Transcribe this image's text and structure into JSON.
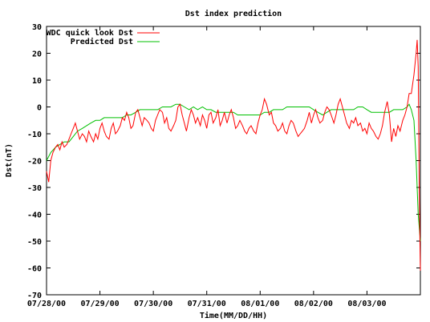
{
  "chart_data": {
    "type": "line",
    "title": "Dst index prediction",
    "xlabel": "Time(MM/DD/HH)",
    "ylabel": "Dst(nT)",
    "x_tick_labels": [
      "07/28/00",
      "07/29/00",
      "07/30/00",
      "07/31/00",
      "08/01/00",
      "08/02/00",
      "08/03/00"
    ],
    "x_range_days": [
      0,
      7.0
    ],
    "ylim": [
      -70,
      30
    ],
    "y_ticks": [
      30,
      20,
      10,
      0,
      -10,
      -20,
      -30,
      -40,
      -50,
      -60,
      -70
    ],
    "grid": false,
    "legend_position": "top-left",
    "series": [
      {
        "name": "WDC quick look Dst",
        "color": "#ff0000",
        "x": [
          0.0,
          0.04,
          0.08,
          0.12,
          0.17,
          0.21,
          0.25,
          0.29,
          0.33,
          0.38,
          0.42,
          0.46,
          0.5,
          0.54,
          0.58,
          0.62,
          0.67,
          0.71,
          0.75,
          0.79,
          0.83,
          0.88,
          0.92,
          0.96,
          1.0,
          1.04,
          1.08,
          1.12,
          1.17,
          1.21,
          1.25,
          1.29,
          1.33,
          1.38,
          1.42,
          1.46,
          1.5,
          1.54,
          1.58,
          1.62,
          1.67,
          1.71,
          1.75,
          1.79,
          1.83,
          1.88,
          1.92,
          1.96,
          2.0,
          2.04,
          2.08,
          2.12,
          2.17,
          2.21,
          2.25,
          2.29,
          2.33,
          2.38,
          2.42,
          2.46,
          2.5,
          2.54,
          2.58,
          2.62,
          2.67,
          2.71,
          2.75,
          2.79,
          2.83,
          2.88,
          2.92,
          2.96,
          3.0,
          3.04,
          3.08,
          3.12,
          3.17,
          3.21,
          3.25,
          3.29,
          3.33,
          3.38,
          3.42,
          3.46,
          3.5,
          3.54,
          3.58,
          3.62,
          3.67,
          3.71,
          3.75,
          3.79,
          3.83,
          3.88,
          3.92,
          3.96,
          4.0,
          4.04,
          4.08,
          4.12,
          4.17,
          4.21,
          4.25,
          4.29,
          4.33,
          4.38,
          4.42,
          4.46,
          4.5,
          4.54,
          4.58,
          4.62,
          4.67,
          4.71,
          4.75,
          4.79,
          4.83,
          4.88,
          4.92,
          4.96,
          5.0,
          5.04,
          5.08,
          5.12,
          5.17,
          5.21,
          5.25,
          5.29,
          5.33,
          5.38,
          5.42,
          5.46,
          5.5,
          5.54,
          5.58,
          5.62,
          5.67,
          5.71,
          5.75,
          5.79,
          5.83,
          5.88,
          5.92,
          5.96,
          6.0,
          6.04,
          6.08,
          6.12,
          6.17,
          6.21,
          6.25,
          6.29,
          6.33,
          6.38,
          6.42,
          6.46,
          6.5,
          6.54,
          6.58,
          6.62,
          6.67,
          6.71,
          6.75,
          6.79,
          6.83,
          6.88,
          6.92,
          6.94,
          6.96,
          6.98,
          7.0
        ],
        "y": [
          -24,
          -28,
          -20,
          -17,
          -15,
          -14,
          -16,
          -13,
          -15,
          -14,
          -12,
          -10,
          -8,
          -6,
          -9,
          -12,
          -10,
          -11,
          -13,
          -9,
          -11,
          -13,
          -10,
          -12,
          -8,
          -6,
          -9,
          -11,
          -12,
          -8,
          -6,
          -10,
          -9,
          -7,
          -4,
          -5,
          -2,
          -4,
          -8,
          -7,
          -2,
          -1,
          -4,
          -7,
          -4,
          -5,
          -6,
          -8,
          -9,
          -5,
          -3,
          -1,
          -2,
          -6,
          -4,
          -8,
          -9,
          -7,
          -5,
          0,
          1,
          -3,
          -6,
          -9,
          -4,
          -1,
          -3,
          -6,
          -4,
          -7,
          -3,
          -5,
          -8,
          -3,
          -2,
          -6,
          -4,
          -1,
          -7,
          -5,
          -2,
          -6,
          -3,
          -1,
          -4,
          -8,
          -7,
          -5,
          -7,
          -9,
          -10,
          -8,
          -7,
          -9,
          -10,
          -6,
          -3,
          -1,
          3,
          1,
          -3,
          -2,
          -6,
          -7,
          -9,
          -8,
          -6,
          -9,
          -10,
          -7,
          -5,
          -6,
          -9,
          -11,
          -10,
          -9,
          -8,
          -5,
          -2,
          -6,
          -3,
          -1,
          -4,
          -6,
          -5,
          -2,
          0,
          -1,
          -3,
          -6,
          -3,
          1,
          3,
          0,
          -3,
          -6,
          -8,
          -5,
          -6,
          -4,
          -7,
          -6,
          -9,
          -8,
          -10,
          -6,
          -8,
          -9,
          -11,
          -12,
          -10,
          -7,
          -2,
          2,
          -3,
          -13,
          -8,
          -11,
          -7,
          -9,
          -5,
          -3,
          0,
          5,
          5,
          12,
          20,
          25,
          15,
          -35,
          -61
        ]
      },
      {
        "name": "Predicted Dst",
        "color": "#00c000",
        "x": [
          0.0,
          0.08,
          0.17,
          0.25,
          0.33,
          0.42,
          0.5,
          0.58,
          0.67,
          0.75,
          0.83,
          0.92,
          1.0,
          1.08,
          1.17,
          1.25,
          1.33,
          1.42,
          1.5,
          1.58,
          1.67,
          1.75,
          1.83,
          1.92,
          2.0,
          2.08,
          2.17,
          2.25,
          2.33,
          2.42,
          2.5,
          2.58,
          2.67,
          2.75,
          2.83,
          2.92,
          3.0,
          3.08,
          3.17,
          3.25,
          3.33,
          3.42,
          3.5,
          3.58,
          3.67,
          3.75,
          3.83,
          3.92,
          4.0,
          4.08,
          4.17,
          4.25,
          4.33,
          4.42,
          4.5,
          4.58,
          4.67,
          4.75,
          4.83,
          4.92,
          5.0,
          5.08,
          5.17,
          5.25,
          5.33,
          5.42,
          5.5,
          5.58,
          5.67,
          5.75,
          5.83,
          5.92,
          6.0,
          6.08,
          6.17,
          6.25,
          6.33,
          6.42,
          6.5,
          6.58,
          6.67,
          6.75,
          6.79,
          6.83,
          6.88,
          6.92,
          6.96,
          7.0
        ],
        "y": [
          -20,
          -17,
          -15,
          -14,
          -13,
          -13,
          -11,
          -9,
          -8,
          -7,
          -6,
          -5,
          -5,
          -4,
          -4,
          -4,
          -4,
          -4,
          -3,
          -3,
          -2,
          -1,
          -1,
          -1,
          -1,
          -1,
          0,
          0,
          0,
          1,
          1,
          0,
          -1,
          0,
          -1,
          0,
          -1,
          -1,
          -2,
          -2,
          -2,
          -2,
          -2,
          -3,
          -3,
          -3,
          -3,
          -3,
          -3,
          -2,
          -2,
          -1,
          -1,
          -1,
          0,
          0,
          0,
          0,
          0,
          0,
          -1,
          -2,
          -3,
          -2,
          -1,
          -1,
          -1,
          -1,
          -1,
          -1,
          0,
          0,
          -1,
          -2,
          -2,
          -2,
          -2,
          -2,
          -1,
          -1,
          -1,
          0,
          1,
          -1,
          -5,
          -20,
          -40,
          -50
        ]
      }
    ]
  }
}
